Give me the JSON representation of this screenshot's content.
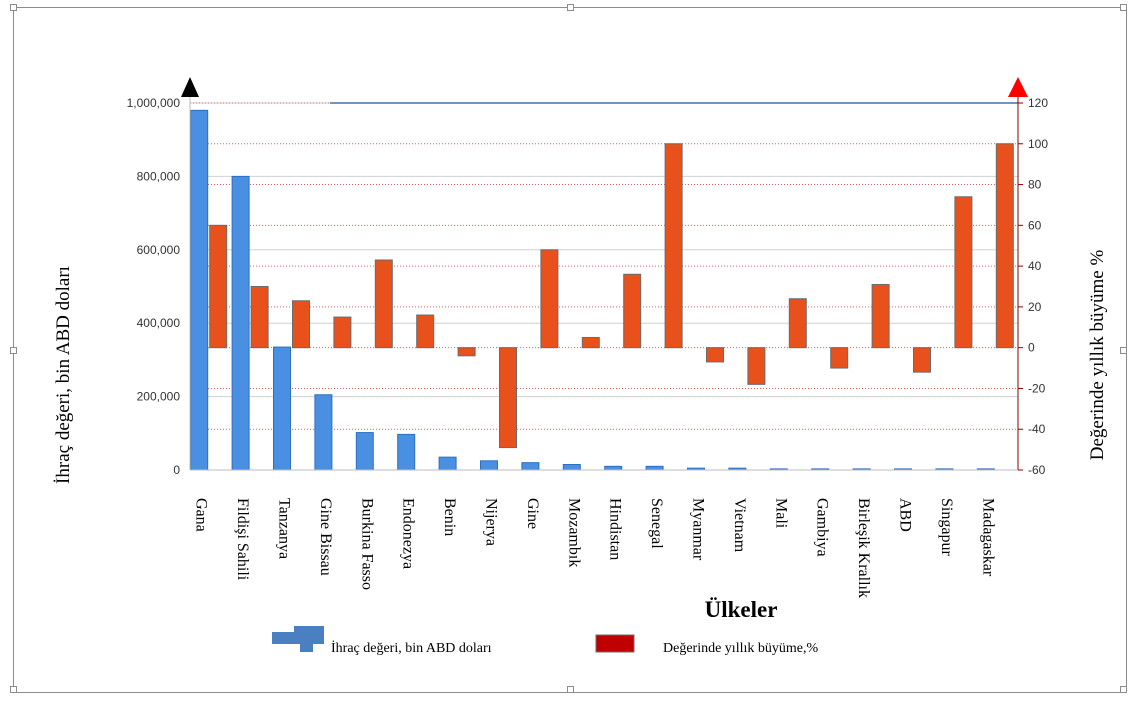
{
  "colors": {
    "export_bar": "#4a90e2",
    "export_bar_stroke": "#2e6fbf",
    "growth_bar": "#e8501c",
    "growth_bar_stroke": "#6b6b6b",
    "right_axis": "#8b0000",
    "left_arrow": "#000000",
    "right_arrow": "#ff0000"
  },
  "chart_data": {
    "type": "bar",
    "title": "",
    "xlabel": "Ülkeler",
    "ylabel_left": "İhraç değeri, bin ABD doları",
    "ylabel_right": "Değerinde yıllık büyüme %",
    "ylim_left": [
      0,
      1000000
    ],
    "ylim_right": [
      -60,
      120
    ],
    "yticks_left": [
      "0",
      "200,000",
      "400,000",
      "600,000",
      "800,000",
      "1,000,000"
    ],
    "yticks_right": [
      "-60",
      "-40",
      "-20",
      "0",
      "20",
      "40",
      "60",
      "80",
      "100",
      "120"
    ],
    "categories": [
      "Gana",
      "Fildişi Sahili",
      "Tanzanya",
      "Gine Bissau",
      "Burkina Fasso",
      "Endonezya",
      "Benin",
      "Nijerya",
      "Gine",
      "Mozambık",
      "Hindistan",
      "Senegal",
      "Myanmar",
      "Vietnam",
      "Mali",
      "Gambiya",
      "Birleşik Krallık",
      "ABD",
      "Singapur",
      "Madagaskar"
    ],
    "series": [
      {
        "name": "İhraç değeri, bin ABD doları",
        "axis": "left",
        "values": [
          980000,
          800000,
          335000,
          205000,
          102000,
          97000,
          35000,
          25000,
          20000,
          15000,
          10000,
          10000,
          5000,
          5000,
          3000,
          3000,
          3000,
          3000,
          3000,
          3000
        ]
      },
      {
        "name": "Değerinde yıllık büyüme,%",
        "axis": "right",
        "values": [
          60,
          30,
          23,
          15,
          43,
          16,
          -4,
          -49,
          48,
          5,
          36,
          100,
          -7,
          -18,
          24,
          -10,
          31,
          -12,
          74,
          100
        ]
      }
    ],
    "grid": true,
    "legend_position": "bottom"
  }
}
